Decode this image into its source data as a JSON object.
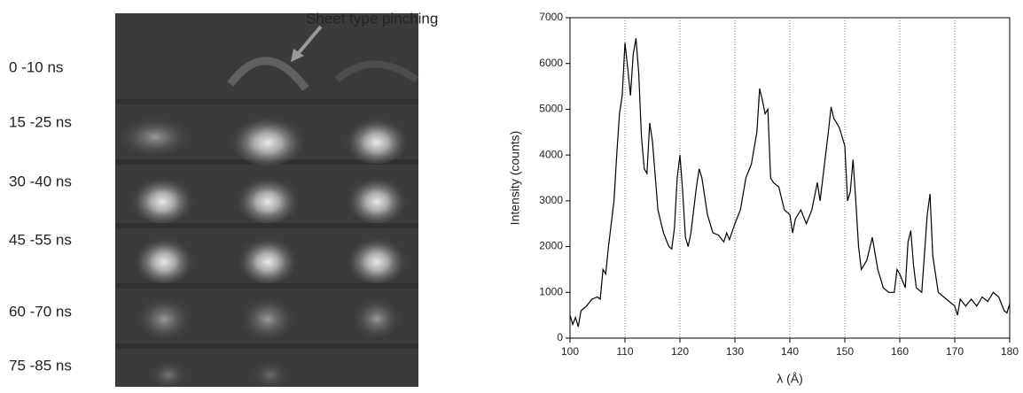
{
  "image_panel": {
    "annotation": "Sheet type pinching",
    "row_labels": [
      "0 -10 ns",
      "15 -25 ns",
      "30 -40 ns",
      "45 -55 ns",
      "60 -70 ns",
      "75 -85 ns"
    ]
  },
  "chart_data": {
    "type": "line",
    "xlabel": "λ (Å)",
    "ylabel": "Intensity (counts)",
    "color": "#000000",
    "xlim": [
      100,
      180
    ],
    "xticks": [
      100,
      110,
      120,
      130,
      140,
      150,
      160,
      170,
      180
    ],
    "ylim": [
      0,
      7000
    ],
    "yticks": [
      0,
      1000,
      2000,
      3000,
      4000,
      5000,
      6000,
      7000
    ],
    "grid": "x",
    "x": [
      100,
      100.5,
      101,
      101.5,
      102,
      103,
      104,
      105,
      105.5,
      106,
      106.5,
      107,
      108,
      108.5,
      109,
      109.5,
      110,
      110.5,
      111,
      111.5,
      112,
      112.5,
      113,
      113.5,
      114,
      114.5,
      115,
      116,
      117,
      118,
      118.5,
      119,
      119.5,
      120,
      120.5,
      121,
      121.5,
      122,
      123,
      123.5,
      124,
      125,
      126,
      127,
      128,
      128.5,
      129,
      130,
      131,
      132,
      133,
      134,
      134.5,
      135,
      135.5,
      136,
      136.5,
      137,
      138,
      139,
      140,
      140.5,
      141,
      142,
      143,
      144,
      145,
      145.5,
      146,
      147,
      147.5,
      148,
      149,
      150,
      150.5,
      151,
      151.5,
      152,
      152.5,
      153,
      154,
      155,
      156,
      157,
      158,
      159,
      159.5,
      160,
      161,
      161.5,
      162,
      162.5,
      163,
      164,
      165,
      165.5,
      166,
      167,
      168,
      169,
      170,
      170.5,
      171,
      172,
      173,
      174,
      175,
      176,
      177,
      178,
      179,
      179.5,
      180
    ],
    "values": [
      500,
      300,
      450,
      250,
      600,
      700,
      850,
      900,
      850,
      1500,
      1400,
      2000,
      3000,
      4000,
      4900,
      5300,
      6450,
      5900,
      5300,
      6200,
      6550,
      5800,
      4400,
      3700,
      3600,
      4700,
      4300,
      2800,
      2300,
      2000,
      1950,
      2400,
      3500,
      4000,
      3200,
      2200,
      2000,
      2300,
      3300,
      3700,
      3500,
      2700,
      2300,
      2250,
      2100,
      2300,
      2150,
      2500,
      2800,
      3500,
      3800,
      4500,
      5450,
      5200,
      4900,
      5000,
      3500,
      3400,
      3300,
      2800,
      2700,
      2300,
      2600,
      2800,
      2500,
      2800,
      3400,
      3000,
      3500,
      4500,
      5050,
      4800,
      4600,
      4200,
      3000,
      3200,
      3900,
      3000,
      2000,
      1500,
      1700,
      2200,
      1500,
      1100,
      1000,
      1000,
      1500,
      1400,
      1100,
      2100,
      2350,
      1600,
      1100,
      1000,
      2700,
      3150,
      1800,
      1000,
      900,
      800,
      700,
      500,
      850,
      700,
      850,
      700,
      900,
      800,
      1000,
      900,
      600,
      550,
      750
    ]
  }
}
